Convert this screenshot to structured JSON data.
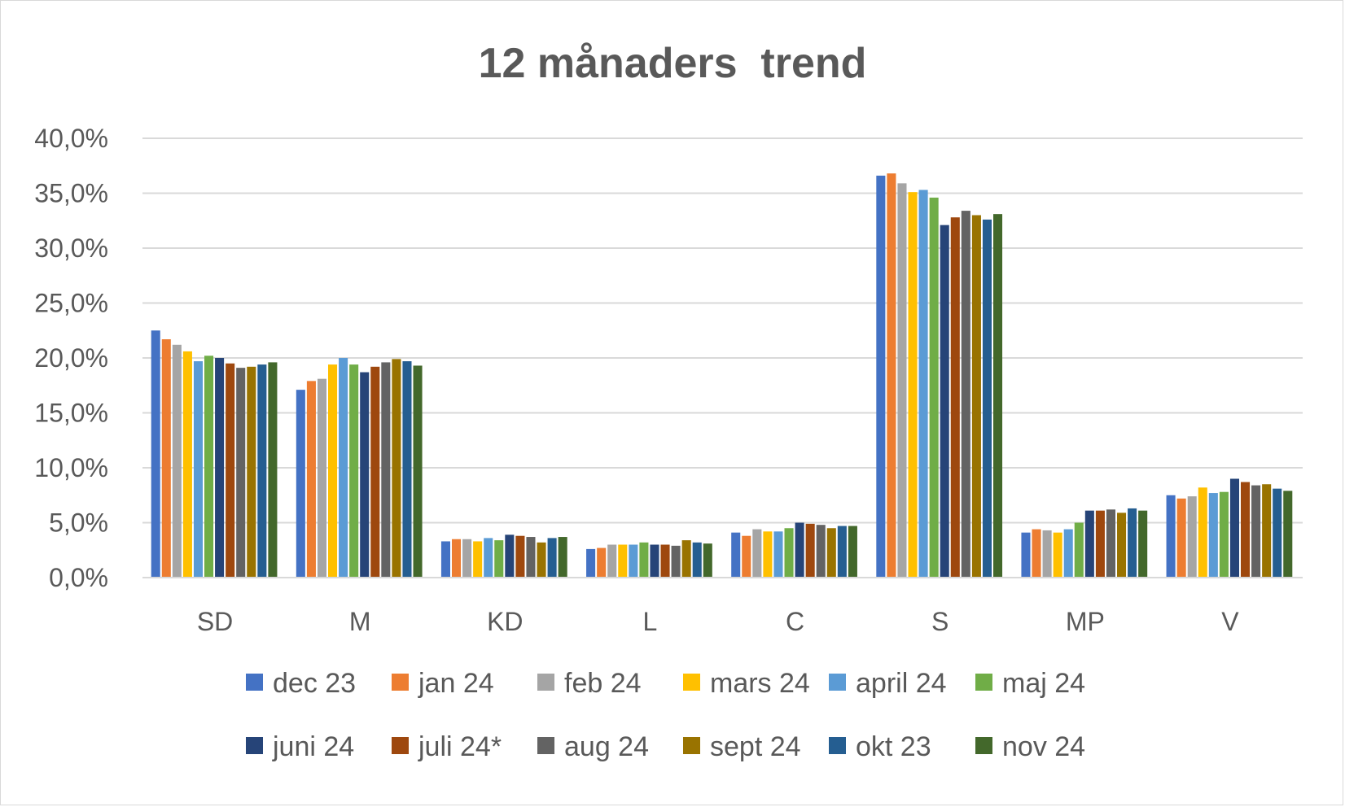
{
  "chart_data": {
    "type": "bar",
    "title": "12 månaders  trend",
    "xlabel": "",
    "ylabel": "",
    "ylim": [
      0,
      40
    ],
    "yticks": [
      "0,0%",
      "5,0%",
      "10,0%",
      "15,0%",
      "20,0%",
      "25,0%",
      "30,0%",
      "35,0%",
      "40,0%"
    ],
    "grid": true,
    "legend_position": "bottom",
    "categories": [
      "SD",
      "M",
      "KD",
      "L",
      "C",
      "S",
      "MP",
      "V"
    ],
    "series": [
      {
        "name": "dec 23",
        "color": "#4472C4",
        "values": [
          22.5,
          17.1,
          3.3,
          2.6,
          4.1,
          36.6,
          4.1,
          7.5
        ]
      },
      {
        "name": "jan 24",
        "color": "#ED7D31",
        "values": [
          21.7,
          17.9,
          3.5,
          2.7,
          3.8,
          36.8,
          4.4,
          7.2
        ]
      },
      {
        "name": "feb 24",
        "color": "#A5A5A5",
        "values": [
          21.2,
          18.1,
          3.5,
          3.0,
          4.4,
          35.9,
          4.3,
          7.4
        ]
      },
      {
        "name": "mars 24",
        "color": "#FFC000",
        "values": [
          20.6,
          19.4,
          3.3,
          3.0,
          4.2,
          35.1,
          4.1,
          8.2
        ]
      },
      {
        "name": "april 24",
        "color": "#5B9BD5",
        "values": [
          19.7,
          20.0,
          3.6,
          3.0,
          4.2,
          35.3,
          4.4,
          7.7
        ]
      },
      {
        "name": "maj 24",
        "color": "#70AD47",
        "values": [
          20.2,
          19.4,
          3.4,
          3.2,
          4.5,
          34.6,
          5.0,
          7.8
        ]
      },
      {
        "name": "juni 24",
        "color": "#264478",
        "values": [
          20.0,
          18.7,
          3.9,
          3.0,
          5.0,
          32.1,
          6.1,
          9.0
        ]
      },
      {
        "name": "juli 24*",
        "color": "#9E480E",
        "values": [
          19.5,
          19.2,
          3.8,
          3.0,
          4.9,
          32.8,
          6.1,
          8.7
        ]
      },
      {
        "name": "aug 24",
        "color": "#636363",
        "values": [
          19.1,
          19.6,
          3.7,
          2.9,
          4.8,
          33.4,
          6.2,
          8.4
        ]
      },
      {
        "name": "sept 24",
        "color": "#997300",
        "values": [
          19.2,
          19.9,
          3.2,
          3.4,
          4.5,
          33.0,
          5.9,
          8.5
        ]
      },
      {
        "name": "okt 23",
        "color": "#255E91",
        "values": [
          19.4,
          19.7,
          3.6,
          3.2,
          4.7,
          32.6,
          6.3,
          8.1
        ]
      },
      {
        "name": "nov 24",
        "color": "#43682B",
        "values": [
          19.6,
          19.3,
          3.7,
          3.1,
          4.7,
          33.1,
          6.1,
          7.9
        ]
      }
    ]
  }
}
